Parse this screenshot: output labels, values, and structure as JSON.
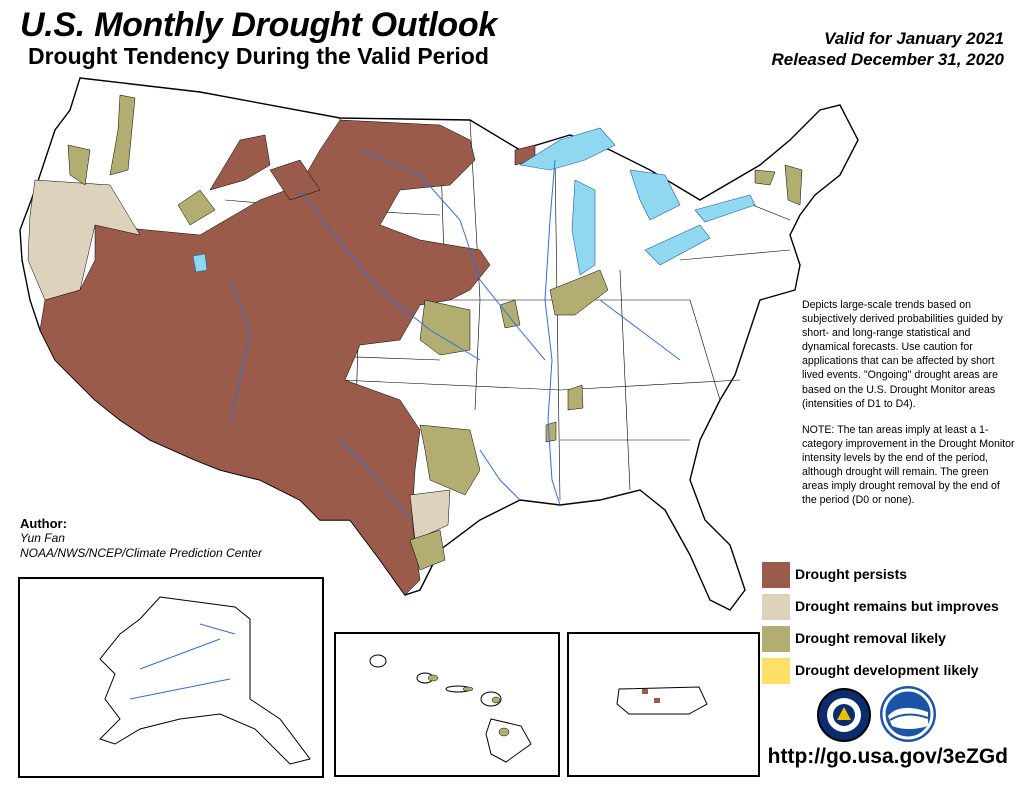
{
  "header": {
    "title": "U.S. Monthly Drought Outlook",
    "subtitle": "Drought Tendency During the Valid Period",
    "valid": "Valid for January 2021",
    "released": "Released December 31, 2020"
  },
  "description": {
    "paragraph1": "Depicts large-scale trends based on subjectively derived probabilities guided by short- and long-range statistical and dynamical forecasts. Use caution for applications that can be affected by short lived events. \"Ongoing\" drought areas are based on the U.S. Drought Monitor areas (intensities of D1 to D4).",
    "paragraph2": "NOTE: The tan areas imply at least a 1-category improvement in the Drought Monitor intensity levels by the end of the period, although drought will remain. The green areas imply drought removal by the end of the period (D0 or none)."
  },
  "author": {
    "label": "Author:",
    "name": "Yun Fan",
    "org": "NOAA/NWS/NCEP/Climate Prediction Center"
  },
  "legend": {
    "items": [
      {
        "label": "Drought persists",
        "color": "#9b5b4b"
      },
      {
        "label": "Drought remains but improves",
        "color": "#ddd2bc"
      },
      {
        "label": "Drought removal likely",
        "color": "#b2ae72"
      },
      {
        "label": "Drought development likely",
        "color": "#ffe066"
      }
    ]
  },
  "colors": {
    "persists": "#9b5b4b",
    "improves": "#ddd2bc",
    "removal": "#b2ae72",
    "development": "#ffe066",
    "water": "#8fd8f0",
    "rivers": "#2e6fe0"
  },
  "logos": [
    "noaa-nws-logo",
    "noaa-logo"
  ],
  "footer": {
    "url": "http://go.usa.gov/3eZGd"
  }
}
